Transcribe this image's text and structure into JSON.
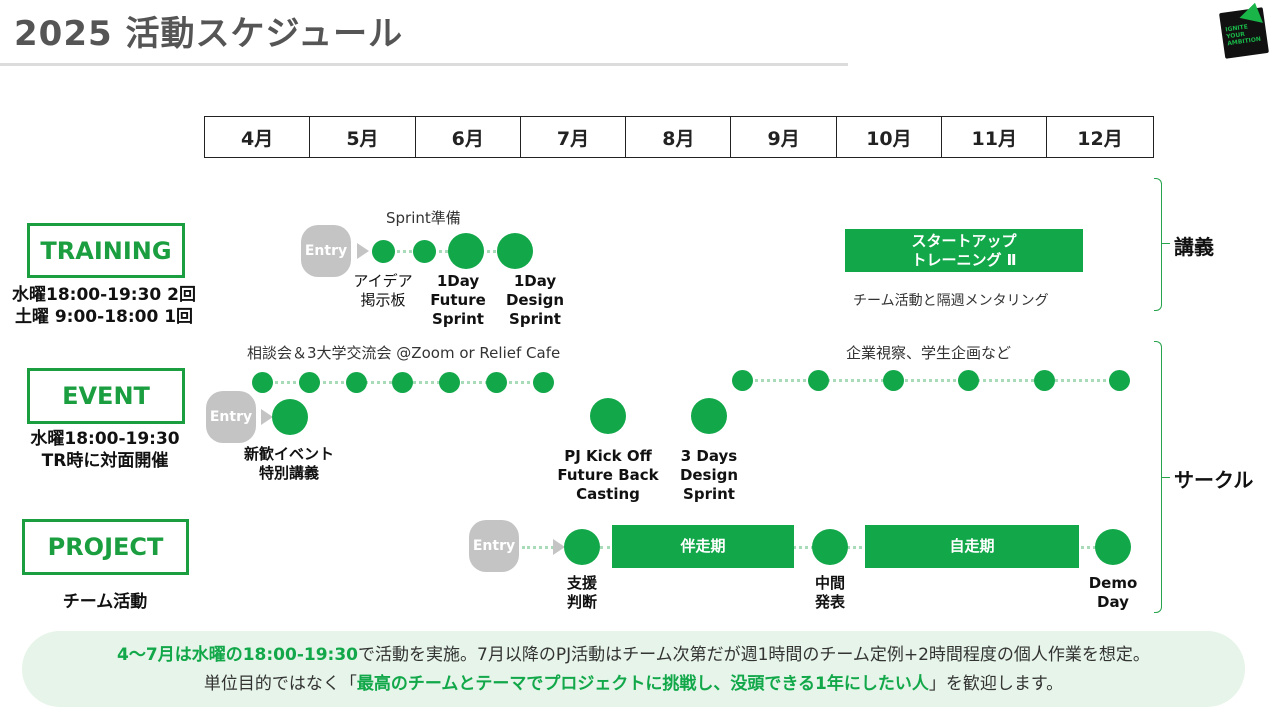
{
  "page": {
    "title": "2025 活動スケジュール"
  },
  "logo": {
    "text": "IGNITE YOUR AMBITION"
  },
  "months": [
    "4月",
    "5月",
    "6月",
    "7月",
    "8月",
    "9月",
    "10月",
    "11月",
    "12月"
  ],
  "training": {
    "label": "TRAINING",
    "schedule": "水曜18:00-19:30 2回\n土曜 9:00-18:00 1回",
    "entry": "Entry",
    "sprint_prep": "Sprint準備",
    "milestones": [
      "アイデア\n掲示板",
      "1Day\nFuture\nSprint",
      "1Day\nDesign\nSprint"
    ],
    "startup_bar": "スタートアップ\nトレーニング Ⅱ",
    "startup_note": "チーム活動と隔週メンタリング"
  },
  "event": {
    "label": "EVENT",
    "schedule": "水曜18:00-19:30\nTR時に対面開催",
    "entry": "Entry",
    "meetup": "相談会＆3大学交流会 @Zoom or Relief Cafe",
    "later": "企業視察、学生企画など",
    "milestones": [
      "新歓イベント\n特別講義",
      "PJ Kick Off\nFuture Back\nCasting",
      "3 Days\nDesign\nSprint"
    ]
  },
  "project": {
    "label": "PROJECT",
    "schedule": "チーム活動",
    "entry": "Entry",
    "milestones": [
      "支援\n判断",
      "中間\n発表",
      "Demo\nDay"
    ],
    "phase1": "伴走期",
    "phase2": "自走期"
  },
  "brackets": {
    "lecture": "講義",
    "circle": "サークル"
  },
  "footer": {
    "line1_highlight": "4〜7月は水曜の18:00-19:30",
    "line1_rest": "で活動を実施。7月以降のPJ活動はチーム次第だが週1時間のチーム定例+2時間程度の個人作業を想定。",
    "line2_pre": "単位目的ではなく「",
    "line2_highlight": "最高のチームとテーマでプロジェクトに挑戦し、没頭できる1年にしたい人",
    "line2_post": "」を歓迎します。"
  },
  "colors": {
    "accent": "#12a84a",
    "accent_dark": "#1a9e3f",
    "entry": "#c4c4c4",
    "footer_bg": "#e6f4e9"
  }
}
